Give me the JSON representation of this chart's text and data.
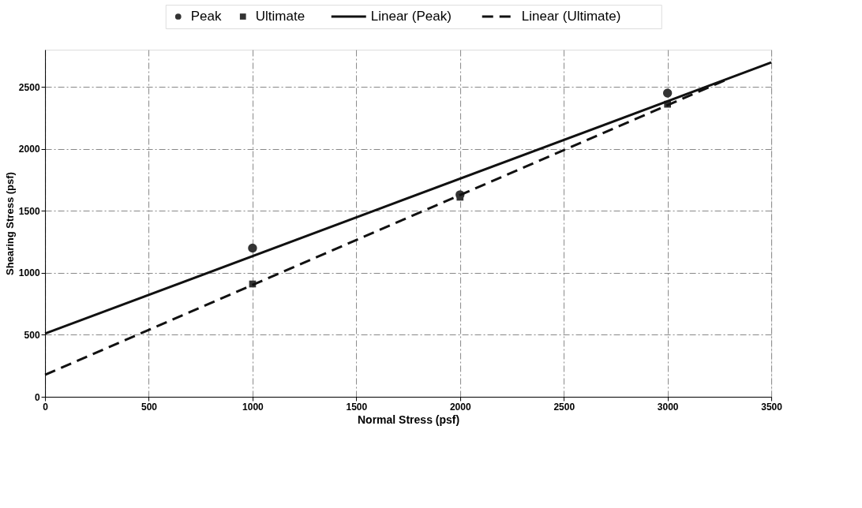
{
  "chart_data": {
    "type": "scatter",
    "xlabel": "Normal Stress (psf)",
    "ylabel": "Shearing Stress (psf)",
    "xlim": [
      0,
      3500
    ],
    "ylim": [
      0,
      2800
    ],
    "xticks": [
      0,
      500,
      1000,
      1500,
      2000,
      2500,
      3000,
      3500
    ],
    "yticks": [
      0,
      500,
      1000,
      1500,
      2000,
      2500
    ],
    "grid": true,
    "legend": "top",
    "series": [
      {
        "name": "Peak",
        "marker": "circle",
        "color": "#333333",
        "x": [
          1000,
          2000,
          3000
        ],
        "values": [
          1200,
          1630,
          2450
        ]
      },
      {
        "name": "Ultimate",
        "marker": "square",
        "color": "#333333",
        "x": [
          1000,
          2000,
          3000
        ],
        "values": [
          910,
          1610,
          2360
        ]
      },
      {
        "name": "Linear (Peak)",
        "type": "line",
        "line_style": "solid",
        "color": "#111111",
        "x": [
          0,
          3500
        ],
        "values": [
          510,
          2697
        ]
      },
      {
        "name": "Linear (Ultimate)",
        "type": "line",
        "line_style": "dashed",
        "color": "#111111",
        "x": [
          0,
          3300
        ],
        "values": [
          177,
          2570
        ]
      }
    ]
  }
}
